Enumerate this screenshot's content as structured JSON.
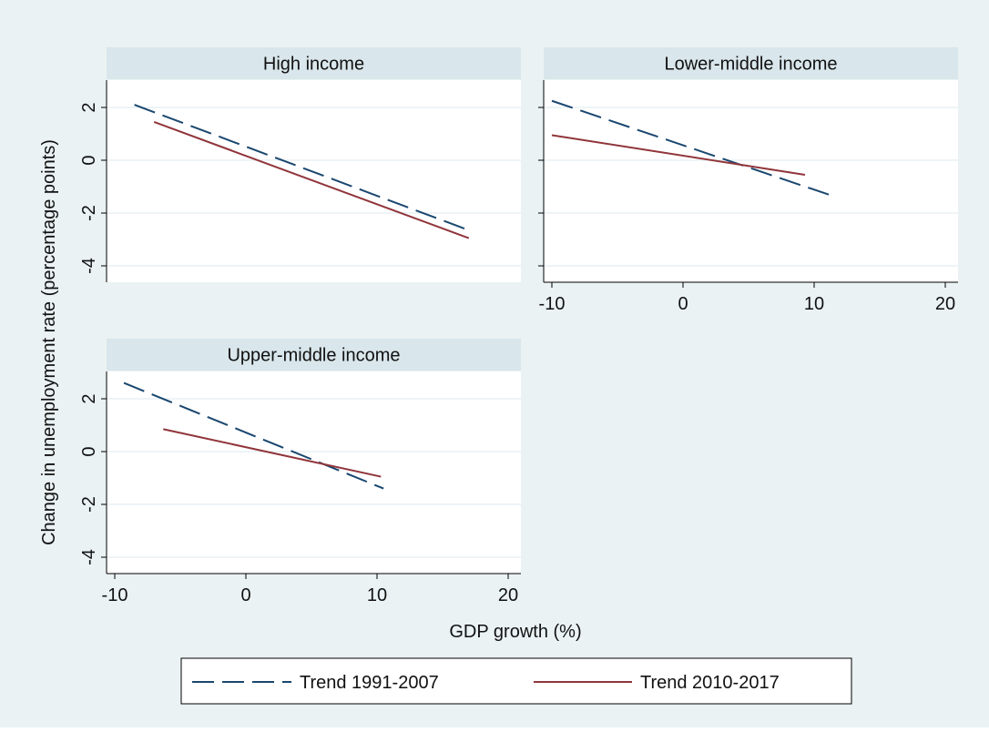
{
  "colors": {
    "outer_background": "#eaf2f3",
    "plot_background": "#ffffff",
    "strip_background": "#d9e6eb",
    "gridline": "#e4eef2",
    "series_1991_2007": "#1a476f",
    "series_2010_2017": "#90353b"
  },
  "chart_data": {
    "type": "line",
    "xlabel": "GDP growth (%)",
    "ylabel": "Change in unemployment rate (percentage points)",
    "xlim": [
      -11,
      21
    ],
    "ylim": [
      -4.5,
      3
    ],
    "xticks": [
      -10,
      0,
      10,
      20
    ],
    "yticks": [
      2,
      0,
      -2,
      -4
    ],
    "grid": true,
    "legend_position": "bottom",
    "series": [
      {
        "name": "Trend 1991-2007",
        "style": "dashed"
      },
      {
        "name": "Trend 2010-2017",
        "style": "solid"
      }
    ],
    "panels": [
      {
        "title": "High income",
        "lines": [
          {
            "series": "Trend 1991-2007",
            "x": [
              -8.5,
              17
            ],
            "y": [
              2.1,
              -2.65
            ]
          },
          {
            "series": "Trend 2010-2017",
            "x": [
              -7,
              17
            ],
            "y": [
              1.45,
              -2.95
            ]
          }
        ]
      },
      {
        "title": "Lower-middle income",
        "lines": [
          {
            "series": "Trend 1991-2007",
            "x": [
              -10,
              11.7
            ],
            "y": [
              2.25,
              -1.4
            ]
          },
          {
            "series": "Trend 2010-2017",
            "x": [
              -10,
              9.3
            ],
            "y": [
              0.95,
              -0.55
            ]
          }
        ]
      },
      {
        "title": "Upper-middle income",
        "lines": [
          {
            "series": "Trend 1991-2007",
            "x": [
              -9.3,
              10.5
            ],
            "y": [
              2.6,
              -1.4
            ]
          },
          {
            "series": "Trend 2010-2017",
            "x": [
              -6.3,
              10.3
            ],
            "y": [
              0.85,
              -0.95
            ]
          }
        ]
      }
    ]
  }
}
